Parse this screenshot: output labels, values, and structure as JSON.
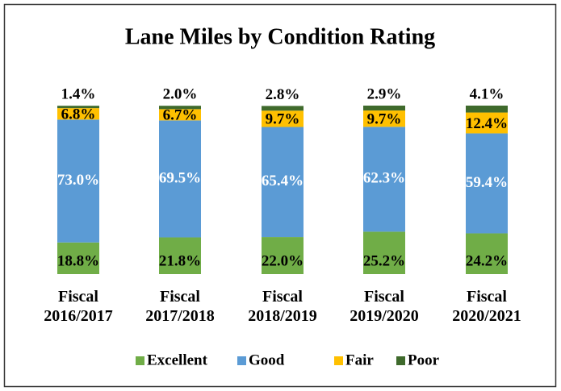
{
  "chart_data": {
    "type": "stacked_bar",
    "title": "Lane Miles by Condition Rating",
    "categories": [
      "Fiscal 2016/2017",
      "Fiscal 2017/2018",
      "Fiscal 2018/2019",
      "Fiscal 2019/2020",
      "Fiscal 2020/2021"
    ],
    "series": [
      {
        "name": "Excellent",
        "color": "#70ad47",
        "values": [
          18.8,
          21.8,
          22.0,
          25.2,
          24.2
        ],
        "value_labels": [
          "18.8%",
          "21.8%",
          "22.0%",
          "25.2%",
          "24.2%"
        ]
      },
      {
        "name": "Good",
        "color": "#5b9bd5",
        "values": [
          73.0,
          69.5,
          65.4,
          62.3,
          59.4
        ],
        "value_labels": [
          "73.0%",
          "69.5%",
          "65.4%",
          "62.3%",
          "59.4%"
        ]
      },
      {
        "name": "Fair",
        "color": "#ffc000",
        "values": [
          6.8,
          6.7,
          9.7,
          9.7,
          12.4
        ],
        "value_labels": [
          "6.8%",
          "6.7%",
          "9.7%",
          "9.7%",
          "12.4%"
        ]
      },
      {
        "name": "Poor",
        "color": "#3f6a2c",
        "values": [
          1.4,
          2.0,
          2.8,
          2.9,
          4.1
        ],
        "value_labels": [
          "1.4%",
          "2.0%",
          "2.8%",
          "2.9%",
          "4.1%"
        ]
      }
    ],
    "legend": "bottom"
  }
}
